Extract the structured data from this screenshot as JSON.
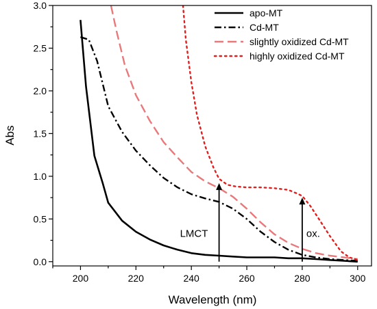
{
  "chart_data": {
    "type": "line",
    "xlabel": "Wavelength (nm)",
    "ylabel": "Abs",
    "xlim": [
      190,
      305
    ],
    "ylim": [
      -0.05,
      3.0
    ],
    "x_ticks": [
      "200",
      "220",
      "240",
      "260",
      "280",
      "300"
    ],
    "y_ticks": [
      "0.0",
      "0.5",
      "1.0",
      "1.5",
      "2.0",
      "2.5",
      "3.0"
    ],
    "grid": false,
    "legend_position": "top-right",
    "series": [
      {
        "name": "apo-MT",
        "color": "#000000",
        "style": "solid",
        "points": [
          [
            200,
            2.83
          ],
          [
            202,
            2.05
          ],
          [
            205,
            1.24
          ],
          [
            208,
            0.92
          ],
          [
            210,
            0.69
          ],
          [
            215,
            0.48
          ],
          [
            220,
            0.35
          ],
          [
            225,
            0.26
          ],
          [
            230,
            0.19
          ],
          [
            235,
            0.14
          ],
          [
            240,
            0.1
          ],
          [
            245,
            0.08
          ],
          [
            250,
            0.07
          ],
          [
            255,
            0.06
          ],
          [
            260,
            0.05
          ],
          [
            265,
            0.05
          ],
          [
            270,
            0.05
          ],
          [
            275,
            0.04
          ],
          [
            280,
            0.04
          ],
          [
            285,
            0.03
          ],
          [
            290,
            0.02
          ],
          [
            295,
            0.01
          ],
          [
            300,
            0.0
          ]
        ]
      },
      {
        "name": "Cd-MT",
        "color": "#000000",
        "style": "dashdot",
        "points": [
          [
            200,
            2.63
          ],
          [
            203,
            2.6
          ],
          [
            206,
            2.35
          ],
          [
            210,
            1.82
          ],
          [
            215,
            1.52
          ],
          [
            220,
            1.3
          ],
          [
            225,
            1.13
          ],
          [
            230,
            0.98
          ],
          [
            235,
            0.87
          ],
          [
            240,
            0.79
          ],
          [
            245,
            0.74
          ],
          [
            250,
            0.7
          ],
          [
            255,
            0.62
          ],
          [
            260,
            0.5
          ],
          [
            265,
            0.35
          ],
          [
            270,
            0.23
          ],
          [
            275,
            0.14
          ],
          [
            280,
            0.08
          ],
          [
            285,
            0.05
          ],
          [
            290,
            0.03
          ],
          [
            295,
            0.02
          ],
          [
            300,
            0.01
          ]
        ]
      },
      {
        "name": "slightly oxidized Cd-MT",
        "color": "#e8787a",
        "style": "dashed",
        "points": [
          [
            211,
            3.0
          ],
          [
            213,
            2.7
          ],
          [
            216,
            2.3
          ],
          [
            220,
            1.95
          ],
          [
            225,
            1.65
          ],
          [
            230,
            1.4
          ],
          [
            235,
            1.22
          ],
          [
            240,
            1.05
          ],
          [
            245,
            0.94
          ],
          [
            250,
            0.86
          ],
          [
            255,
            0.76
          ],
          [
            260,
            0.62
          ],
          [
            265,
            0.46
          ],
          [
            270,
            0.32
          ],
          [
            275,
            0.22
          ],
          [
            280,
            0.15
          ],
          [
            285,
            0.1
          ],
          [
            290,
            0.07
          ],
          [
            295,
            0.05
          ],
          [
            300,
            0.03
          ]
        ]
      },
      {
        "name": "highly oxidized Cd-MT",
        "color": "#dd2020",
        "style": "dotted",
        "points": [
          [
            237,
            3.0
          ],
          [
            238,
            2.6
          ],
          [
            240,
            2.1
          ],
          [
            242,
            1.72
          ],
          [
            245,
            1.35
          ],
          [
            248,
            1.1
          ],
          [
            250,
            0.97
          ],
          [
            253,
            0.9
          ],
          [
            256,
            0.88
          ],
          [
            260,
            0.87
          ],
          [
            265,
            0.87
          ],
          [
            270,
            0.86
          ],
          [
            275,
            0.84
          ],
          [
            278,
            0.8
          ],
          [
            280,
            0.77
          ],
          [
            283,
            0.65
          ],
          [
            286,
            0.5
          ],
          [
            290,
            0.3
          ],
          [
            294,
            0.12
          ],
          [
            297,
            0.05
          ],
          [
            300,
            0.02
          ]
        ]
      }
    ],
    "annotations": [
      {
        "label": "LMCT",
        "x": 250,
        "arrow_from": 0.0,
        "arrow_to": 0.92
      },
      {
        "label": "ox.",
        "x": 280,
        "arrow_from": 0.0,
        "arrow_to": 0.75
      }
    ]
  }
}
